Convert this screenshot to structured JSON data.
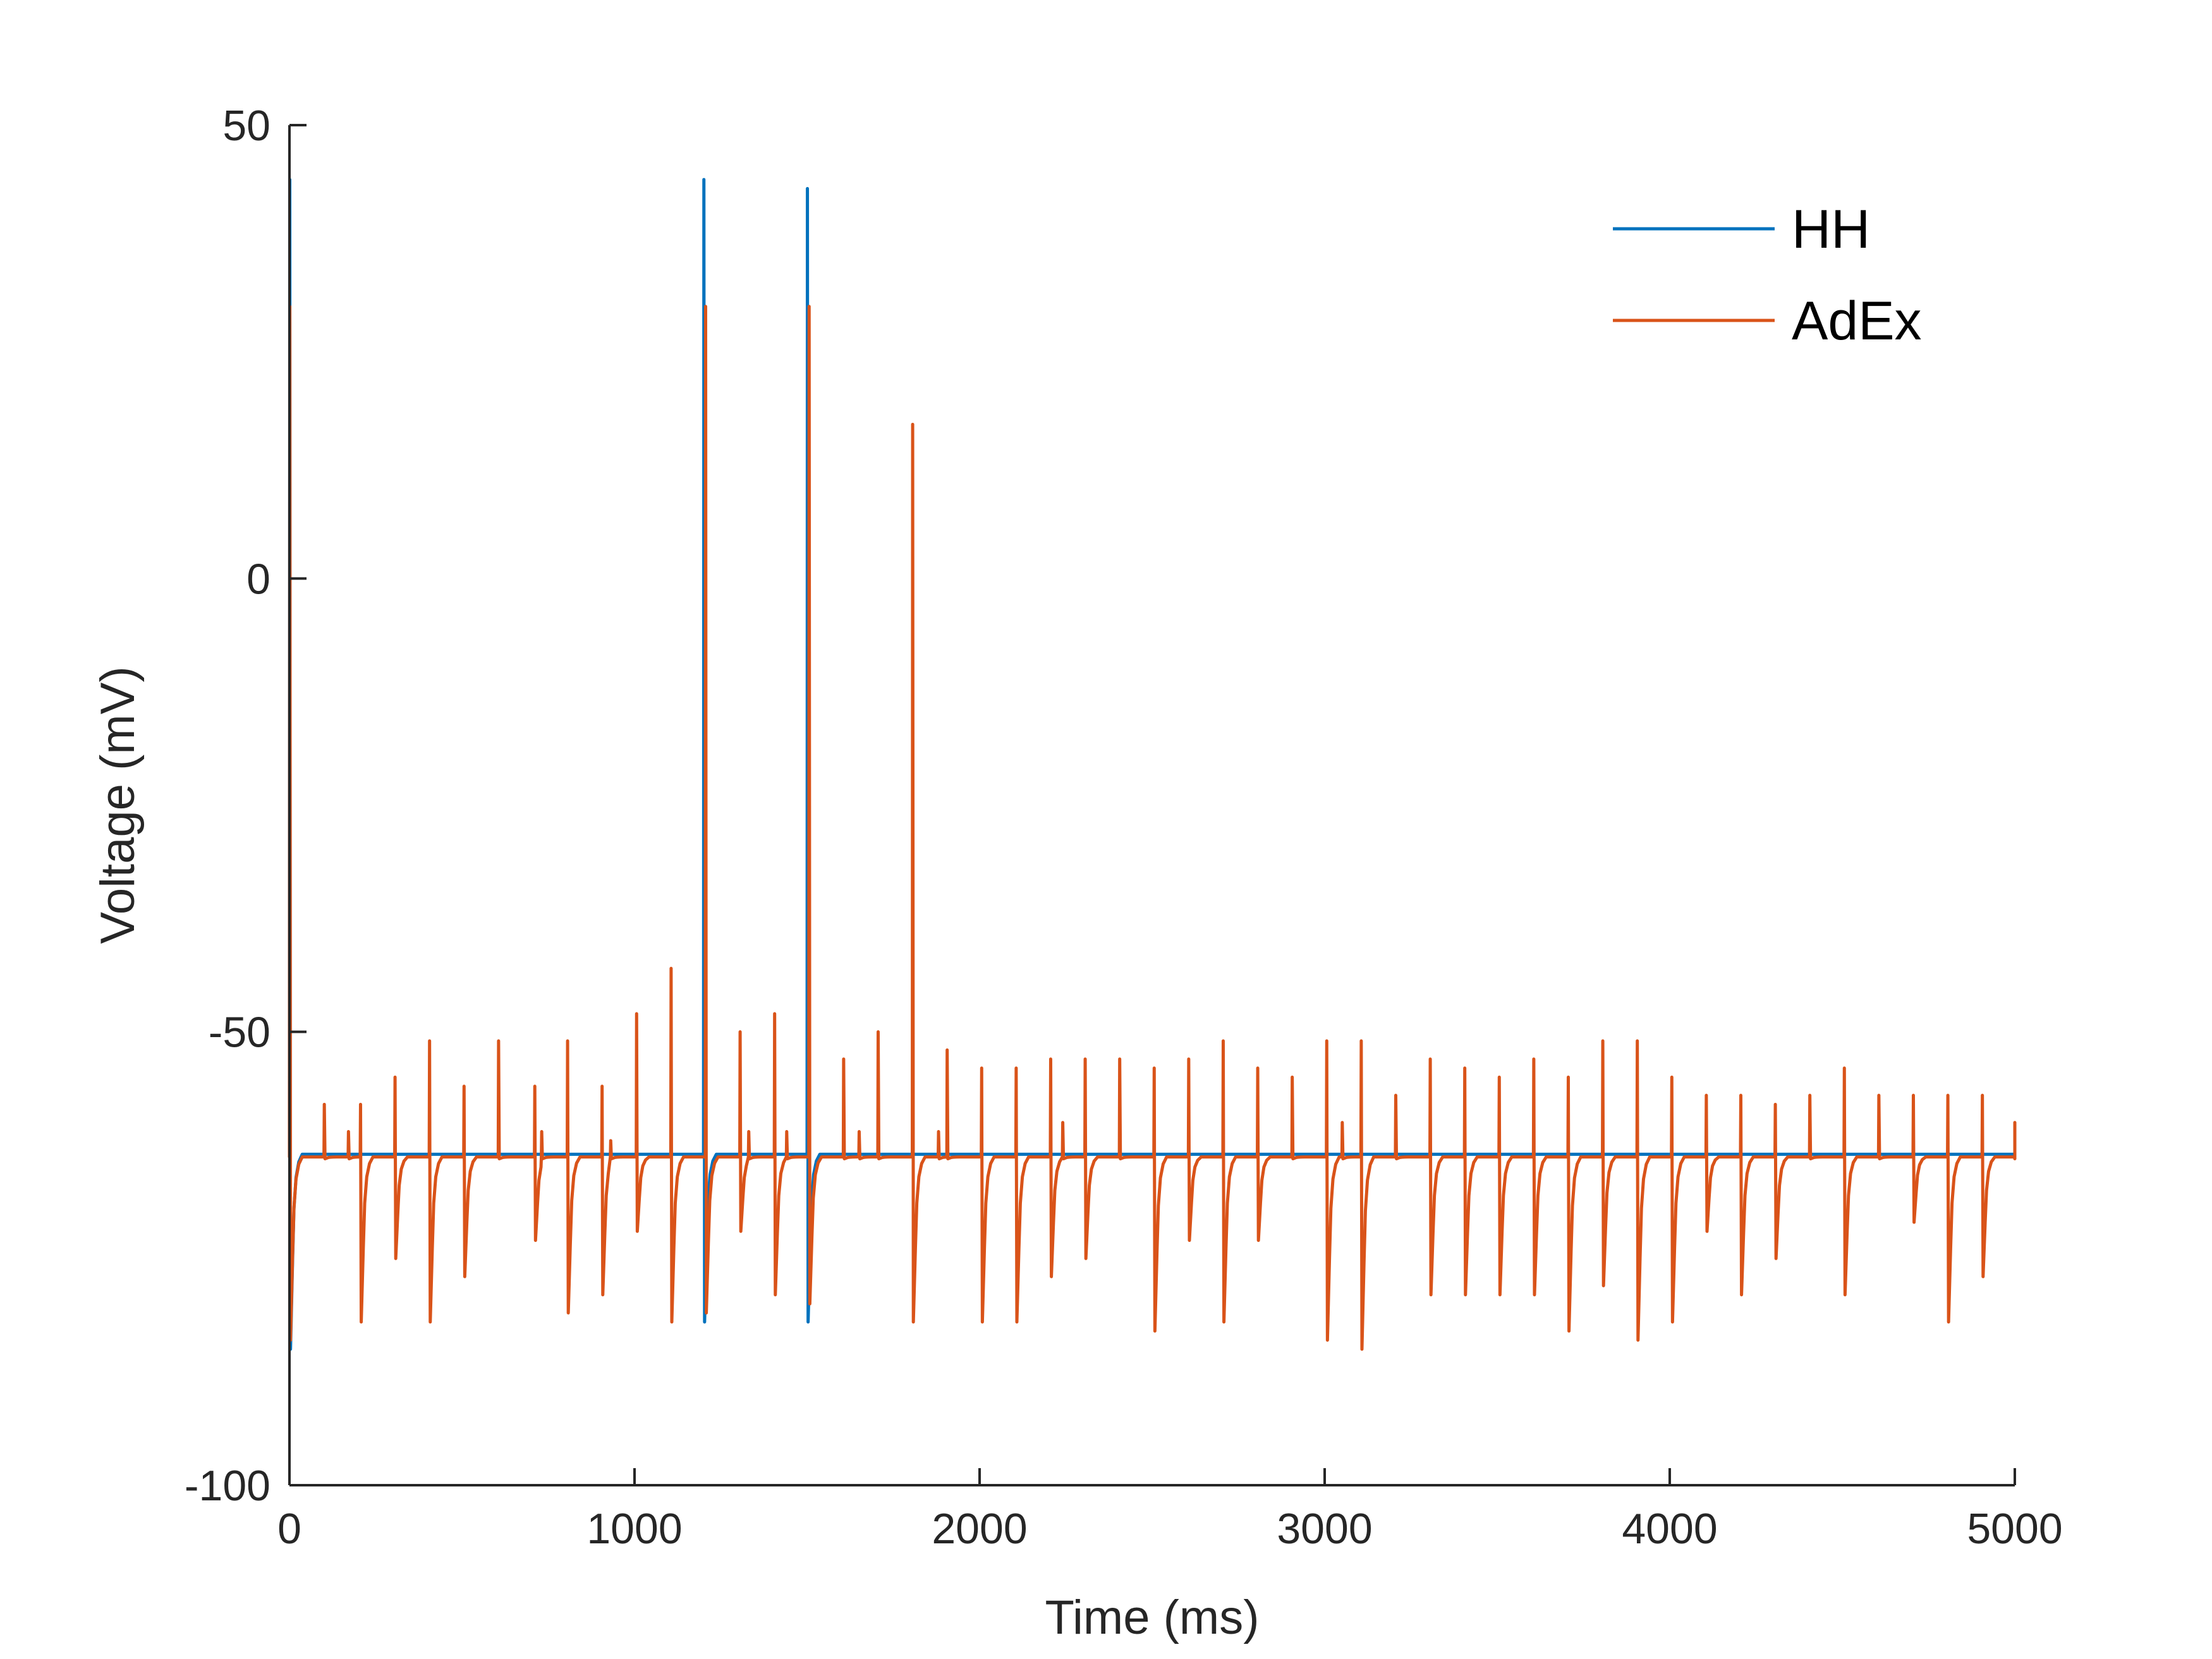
{
  "chart_data": {
    "type": "line",
    "title": "",
    "xlabel": "Time (ms)",
    "ylabel": "Voltage (mV)",
    "xlim": [
      0,
      5000
    ],
    "ylim": [
      -100,
      50
    ],
    "xticks": [
      0,
      1000,
      2000,
      3000,
      4000,
      5000
    ],
    "yticks": [
      -100,
      -50,
      0,
      50
    ],
    "grid": false,
    "legend_position": "top-right",
    "series": [
      {
        "name": "HH",
        "color": "#0072BD",
        "rest": -63.5,
        "events": [
          {
            "t": 0,
            "peak": 44,
            "trough": -85
          },
          {
            "t": 1200,
            "peak": 44,
            "trough": -82
          },
          {
            "t": 1500,
            "peak": 43,
            "trough": -82
          }
        ]
      },
      {
        "name": "AdEx",
        "color": "#D95319",
        "rest": -63.8,
        "events": [
          {
            "t": 0,
            "peak": 30,
            "trough": -84
          },
          {
            "t": 100,
            "peak": -58,
            "trough": -64
          },
          {
            "t": 170,
            "peak": -61,
            "trough": -64
          },
          {
            "t": 205,
            "peak": -58,
            "trough": -82
          },
          {
            "t": 305,
            "peak": -55,
            "trough": -75
          },
          {
            "t": 405,
            "peak": -51,
            "trough": -82
          },
          {
            "t": 505,
            "peak": -56,
            "trough": -77
          },
          {
            "t": 605,
            "peak": -51,
            "trough": -64
          },
          {
            "t": 710,
            "peak": -56,
            "trough": -73
          },
          {
            "t": 730,
            "peak": -61,
            "trough": -64
          },
          {
            "t": 805,
            "peak": -51,
            "trough": -81
          },
          {
            "t": 905,
            "peak": -56,
            "trough": -79
          },
          {
            "t": 930,
            "peak": -62,
            "trough": -64
          },
          {
            "t": 1005,
            "peak": -48,
            "trough": -72
          },
          {
            "t": 1105,
            "peak": -43,
            "trough": -82
          },
          {
            "t": 1205,
            "peak": 30,
            "trough": -81
          },
          {
            "t": 1305,
            "peak": -50,
            "trough": -72
          },
          {
            "t": 1330,
            "peak": -61,
            "trough": -64
          },
          {
            "t": 1405,
            "peak": -48,
            "trough": -79
          },
          {
            "t": 1440,
            "peak": -61,
            "trough": -64
          },
          {
            "t": 1505,
            "peak": 30,
            "trough": -80
          },
          {
            "t": 1605,
            "peak": -53,
            "trough": -64
          },
          {
            "t": 1650,
            "peak": -61,
            "trough": -64
          },
          {
            "t": 1705,
            "peak": -50,
            "trough": -64
          },
          {
            "t": 1805,
            "peak": 17,
            "trough": -82
          },
          {
            "t": 1880,
            "peak": -61,
            "trough": -64
          },
          {
            "t": 1905,
            "peak": -52,
            "trough": -64
          },
          {
            "t": 2005,
            "peak": -54,
            "trough": -82
          },
          {
            "t": 2105,
            "peak": -54,
            "trough": -82
          },
          {
            "t": 2205,
            "peak": -53,
            "trough": -77
          },
          {
            "t": 2240,
            "peak": -60,
            "trough": -64
          },
          {
            "t": 2305,
            "peak": -53,
            "trough": -75
          },
          {
            "t": 2405,
            "peak": -53,
            "trough": -64
          },
          {
            "t": 2505,
            "peak": -54,
            "trough": -83
          },
          {
            "t": 2605,
            "peak": -53,
            "trough": -73
          },
          {
            "t": 2705,
            "peak": -51,
            "trough": -82
          },
          {
            "t": 2805,
            "peak": -54,
            "trough": -73
          },
          {
            "t": 2905,
            "peak": -55,
            "trough": -64
          },
          {
            "t": 3005,
            "peak": -51,
            "trough": -84
          },
          {
            "t": 3050,
            "peak": -60,
            "trough": -64
          },
          {
            "t": 3105,
            "peak": -51,
            "trough": -85
          },
          {
            "t": 3205,
            "peak": -57,
            "trough": -64
          },
          {
            "t": 3305,
            "peak": -53,
            "trough": -79
          },
          {
            "t": 3405,
            "peak": -54,
            "trough": -79
          },
          {
            "t": 3505,
            "peak": -55,
            "trough": -79
          },
          {
            "t": 3605,
            "peak": -53,
            "trough": -79
          },
          {
            "t": 3705,
            "peak": -55,
            "trough": -83
          },
          {
            "t": 3805,
            "peak": -51,
            "trough": -78
          },
          {
            "t": 3905,
            "peak": -51,
            "trough": -84
          },
          {
            "t": 4005,
            "peak": -55,
            "trough": -82
          },
          {
            "t": 4105,
            "peak": -57,
            "trough": -72
          },
          {
            "t": 4205,
            "peak": -57,
            "trough": -79
          },
          {
            "t": 4305,
            "peak": -58,
            "trough": -75
          },
          {
            "t": 4405,
            "peak": -57,
            "trough": -64
          },
          {
            "t": 4505,
            "peak": -54,
            "trough": -79
          },
          {
            "t": 4605,
            "peak": -57,
            "trough": -64
          },
          {
            "t": 4705,
            "peak": -57,
            "trough": -71
          },
          {
            "t": 4805,
            "peak": -57,
            "trough": -82
          },
          {
            "t": 4905,
            "peak": -57,
            "trough": -77
          },
          {
            "t": 5000,
            "peak": -60,
            "trough": -64
          }
        ]
      }
    ]
  }
}
